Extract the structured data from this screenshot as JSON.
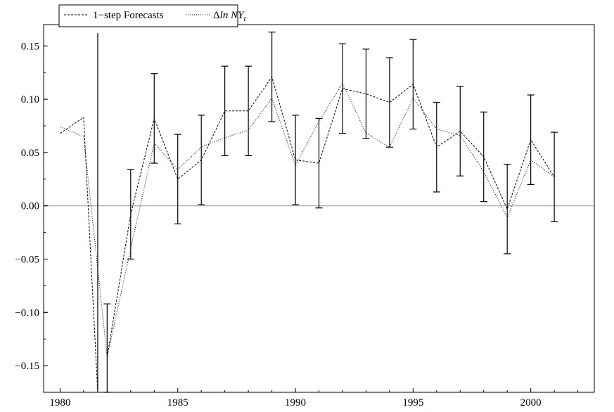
{
  "chart_data": {
    "type": "line",
    "title": "",
    "xlabel": "",
    "ylabel": "",
    "xlim": [
      1979.3,
      2002.7
    ],
    "ylim": [
      -0.175,
      0.17
    ],
    "x_ticks": [
      1980,
      1985,
      1990,
      1995,
      2000
    ],
    "x_tick_labels": [
      "1980",
      "1985",
      "1990",
      "1995",
      "2000"
    ],
    "y_ticks": [
      0.15,
      0.1,
      0.05,
      0.0,
      -0.05,
      -0.1,
      -0.15
    ],
    "y_tick_labels": [
      "0.15",
      "0.10",
      "0.05",
      "0.00",
      "−0.05",
      "−0.10",
      "−0.15"
    ],
    "zero_line": true,
    "grid": false,
    "legend_position": "top-left",
    "legend": {
      "forecast_label": "1−step Forecasts",
      "actual_label_prefix": "Δ",
      "actual_label_ln": "ln",
      "actual_label_ny": "NY",
      "actual_label_sub": "t"
    },
    "series": [
      {
        "name": "1−step Forecasts",
        "style": "dashed",
        "x": [
          1982,
          1983,
          1984,
          1985,
          1986,
          1987,
          1988,
          1989,
          1990,
          1991,
          1992,
          1993,
          1994,
          1995,
          1996,
          1997,
          1998,
          1999,
          2000,
          2001
        ],
        "y": [
          -0.142,
          -0.008,
          0.082,
          0.025,
          0.043,
          0.089,
          0.089,
          0.121,
          0.043,
          0.04,
          0.11,
          0.105,
          0.097,
          0.114,
          0.055,
          0.07,
          0.046,
          -0.003,
          0.062,
          0.027
        ],
        "error_low": [
          -0.175,
          -0.05,
          0.04,
          -0.017,
          0.001,
          0.047,
          0.047,
          0.079,
          0.001,
          -0.002,
          0.068,
          0.063,
          0.055,
          0.072,
          0.013,
          0.028,
          0.004,
          -0.045,
          0.02,
          -0.015
        ],
        "error_high": [
          -0.092,
          0.034,
          0.124,
          0.067,
          0.085,
          0.131,
          0.131,
          0.163,
          0.085,
          0.082,
          0.152,
          0.147,
          0.139,
          0.156,
          0.097,
          0.112,
          0.088,
          0.039,
          0.104,
          0.069
        ]
      },
      {
        "name": "Δln NY_t",
        "style": "dotted",
        "x": [
          1980,
          1981,
          1982,
          1983,
          1984,
          1985,
          1986,
          1987,
          1988,
          1989,
          1990,
          1991,
          1992,
          1993,
          1994,
          1995,
          1996,
          1997,
          1998,
          1999,
          2000,
          2001
        ],
        "y": [
          0.074,
          0.065,
          -0.142,
          -0.04,
          0.059,
          0.034,
          0.055,
          0.064,
          0.071,
          0.101,
          0.038,
          0.079,
          0.115,
          0.068,
          0.055,
          0.101,
          0.072,
          0.066,
          0.032,
          -0.011,
          0.043,
          0.027
        ]
      },
      {
        "name": "",
        "style": "dashed",
        "x": [
          1980,
          1981,
          1981.6
        ],
        "y": [
          0.068,
          0.083,
          -0.175
        ]
      }
    ],
    "extra_error_bar": {
      "x": 1981.6,
      "low": -0.175,
      "high": 0.162
    }
  }
}
